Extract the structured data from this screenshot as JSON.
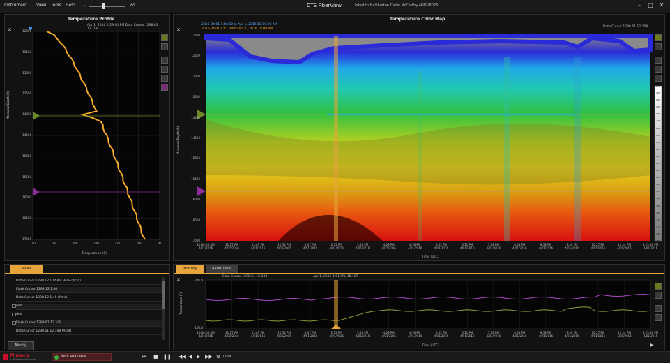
{
  "menu": {
    "items": [
      "Instrument",
      "View",
      "Tools",
      "Help"
    ],
    "zoom_minus": "-",
    "zoom_plus": "Zo"
  },
  "app": {
    "title": "DTS FiberView",
    "subtitle": "Linked to Halliburton Cable McCarthy 4NDG8023"
  },
  "profile": {
    "title": "Temperature Profile",
    "subtitle": "Apr 1, 2016 4:29:00 PM   Data Cursor 1298.61 17.108",
    "x_label": "Temperature (F)",
    "y_label": "Measured Depth (ft)",
    "y_ticks": [
      "12000",
      "12500",
      "13000",
      "13500",
      "14000",
      "14500",
      "15000",
      "15500",
      "16000",
      "16500",
      "17000"
    ],
    "x_ticks": [
      "140",
      "160",
      "180",
      "200",
      "220",
      "240",
      "260"
    ]
  },
  "colormap": {
    "title": "Temperature Color Map",
    "legend_1": "2016-04-01 1:46:00 to Apr 1, 2016 10:09:00 AM",
    "legend_2": "2016-04-01 4:47 PM to Apr 1, 2016 10:09 PM",
    "data_cursor": "Data Cursor 1298.61 12.108",
    "y_label": "Measured Depth (ft)",
    "x_label": "Time (UTC)",
    "y_ticks": [
      "12000",
      "12500",
      "13000",
      "13500",
      "14000",
      "14500",
      "15000",
      "15500",
      "16000",
      "16500",
      "17000"
    ],
    "x_ticks": [
      [
        "10:00:00 AM",
        "4/01/2016"
      ],
      [
        "11:17 AM",
        "4/01/2016"
      ],
      [
        "12:05 PM",
        "4/01/2016"
      ],
      [
        "12:52 PM",
        "4/01/2016"
      ],
      [
        "1:47 PM",
        "4/01/2016"
      ],
      [
        "2:35 PM",
        "4/01/2016"
      ],
      [
        "3:22 PM",
        "4/01/2016"
      ],
      [
        "4:09 PM",
        "4/01/2016"
      ],
      [
        "4:56 PM",
        "4/01/2016"
      ],
      [
        "5:43 PM",
        "4/01/2016"
      ],
      [
        "6:31 PM",
        "4/01/2016"
      ],
      [
        "7:18 PM",
        "4/01/2016"
      ],
      [
        "8:05 PM",
        "4/01/2016"
      ],
      [
        "8:52 PM",
        "4/01/2016"
      ],
      [
        "9:40 PM",
        "4/01/2016"
      ],
      [
        "10:27 PM",
        "4/01/2016"
      ],
      [
        "11:14 PM",
        "4/01/2016"
      ],
      [
        "8:23:56 PM",
        "4/01/2016"
      ]
    ],
    "scale_ticks": [
      "270",
      "265",
      "260",
      "255",
      "250",
      "245",
      "240",
      "235",
      "230",
      "225",
      "220",
      "215",
      "210",
      "205",
      "200",
      "195",
      "190",
      "185",
      "180",
      "175",
      "170",
      "165",
      "160"
    ]
  },
  "picks": {
    "tab": "Picks",
    "rows": [
      "Data Cursor 1298.12 1 Ft Per Peak (Acrd)",
      "Flask Cursor 1298.12 1.40",
      "Data Cursor 1298.12 1.40 (Acrd)",
      "ddd",
      "ddd",
      "Flask Cursor 1298.61 12.108",
      "Data Cursor 1298.61 12.108 (Acrd)"
    ],
    "modify_button": "Modify"
  },
  "history": {
    "tab_active": "History",
    "tab_inactive": "Axial View",
    "cursor_text": "Data Cursor 1298.61 12.108",
    "date_text": "Apr 1, 2016 4:01 PM, 18.107",
    "y_label": "Temperature (F)",
    "x_label": "Time (UTC)",
    "y_top": "240.0",
    "y_bottom": "160.0",
    "x_ticks": [
      [
        "10:00:00 AM",
        "4/01/2016"
      ],
      [
        "11:17 AM",
        "4/01/2016"
      ],
      [
        "12:05 PM",
        "4/01/2016"
      ],
      [
        "12:52 PM",
        "4/01/2016"
      ],
      [
        "1:47 PM",
        "4/01/2016"
      ],
      [
        "2:35 PM",
        "4/01/2016"
      ],
      [
        "3:22 PM",
        "4/01/2016"
      ],
      [
        "4:09 PM",
        "4/01/2016"
      ],
      [
        "4:56 PM",
        "4/01/2016"
      ],
      [
        "5:43 PM",
        "4/01/2016"
      ],
      [
        "6:31 PM",
        "4/01/2016"
      ],
      [
        "7:18 PM",
        "4/01/2016"
      ],
      [
        "8:05 PM",
        "4/01/2016"
      ],
      [
        "8:52 PM",
        "4/01/2016"
      ],
      [
        "9:40 PM",
        "4/01/2016"
      ],
      [
        "10:27 PM",
        "4/01/2016"
      ],
      [
        "11:14 PM",
        "4/01/2016"
      ],
      [
        "8:23:56 PM",
        "4/01/2016"
      ]
    ]
  },
  "status": {
    "brand": "Pinnacle",
    "brand_sub": "A Halliburton Service",
    "connection": "Not Available",
    "mode": "Live"
  },
  "colors": {
    "accent_orange": "#e7a43a",
    "profile_trace": "#f5a623",
    "marker_green": "#6a8a2a",
    "marker_purple": "#8e2c9a",
    "history_purple": "#b048c8",
    "history_green": "#8b9b3a"
  }
}
